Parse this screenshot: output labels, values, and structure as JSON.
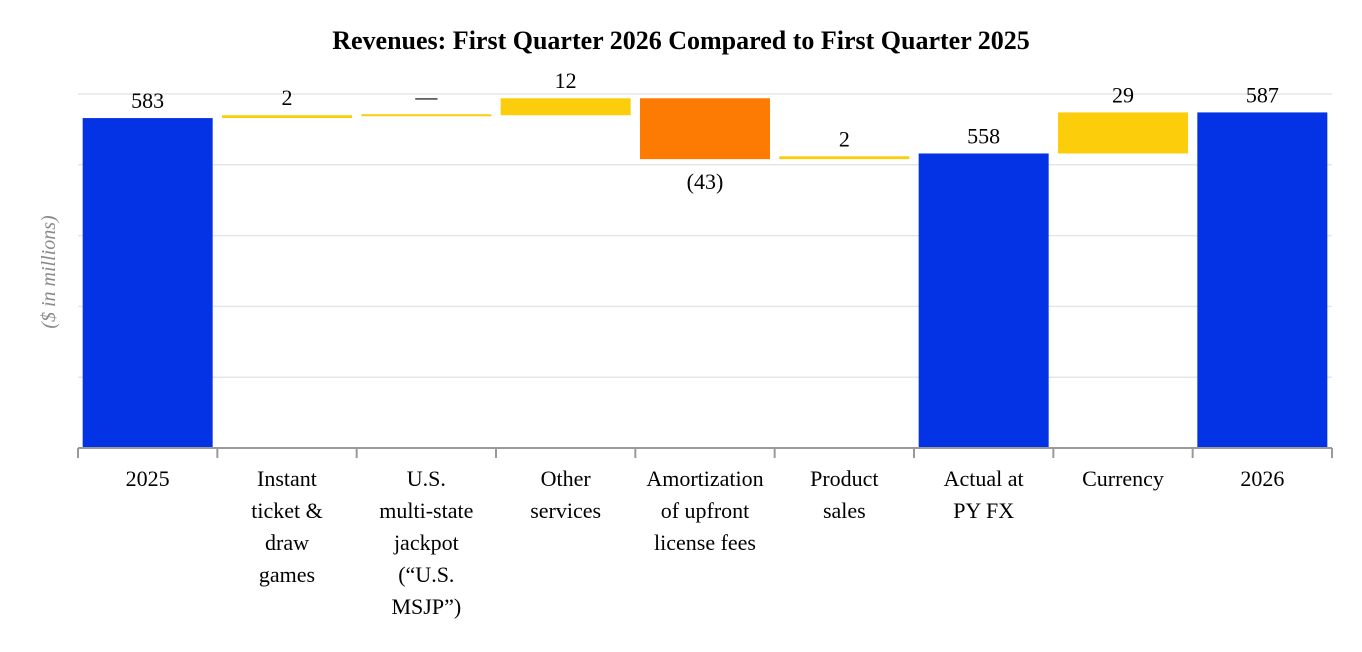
{
  "chart_data": {
    "type": "bar",
    "subtype": "waterfall",
    "title": "Revenues: First Quarter 2026 Compared to First Quarter 2025",
    "ylabel": "($ in millions)",
    "ylim": [
      350,
      600
    ],
    "grid": true,
    "categories": [
      [
        "2025"
      ],
      [
        "Instant",
        "ticket &",
        "draw",
        "games"
      ],
      [
        "U.S.",
        "multi-state",
        "jackpot",
        "(“U.S.",
        "MSJP”)"
      ],
      [
        "Other",
        "services"
      ],
      [
        "Amortization",
        "of upfront",
        "license fees"
      ],
      [
        "Product",
        "sales"
      ],
      [
        "Actual at",
        "PY FX"
      ],
      [
        "Currency"
      ],
      [
        "2026"
      ]
    ],
    "bars": [
      {
        "kind": "total",
        "start": 0,
        "end": 583,
        "label": "583",
        "label_pos": "above"
      },
      {
        "kind": "increase",
        "start": 583,
        "end": 585,
        "label": "2",
        "label_pos": "above"
      },
      {
        "kind": "increase",
        "start": 585,
        "end": 585,
        "label": "—",
        "label_pos": "above"
      },
      {
        "kind": "increase",
        "start": 585,
        "end": 597,
        "label": "12",
        "label_pos": "above"
      },
      {
        "kind": "decrease",
        "start": 597,
        "end": 554,
        "label": "(43)",
        "label_pos": "below"
      },
      {
        "kind": "increase",
        "start": 554,
        "end": 556,
        "label": "2",
        "label_pos": "above"
      },
      {
        "kind": "total",
        "start": 0,
        "end": 558,
        "label": "558",
        "label_pos": "above"
      },
      {
        "kind": "increase",
        "start": 558,
        "end": 587,
        "label": "29",
        "label_pos": "above"
      },
      {
        "kind": "total",
        "start": 0,
        "end": 587,
        "label": "587",
        "label_pos": "above"
      }
    ],
    "colors": {
      "total": "#0433e6",
      "increase": "#fbcd0b",
      "decrease": "#fd7b02",
      "grid": "#e6e6e6",
      "axis": "#9a9a9a"
    }
  }
}
